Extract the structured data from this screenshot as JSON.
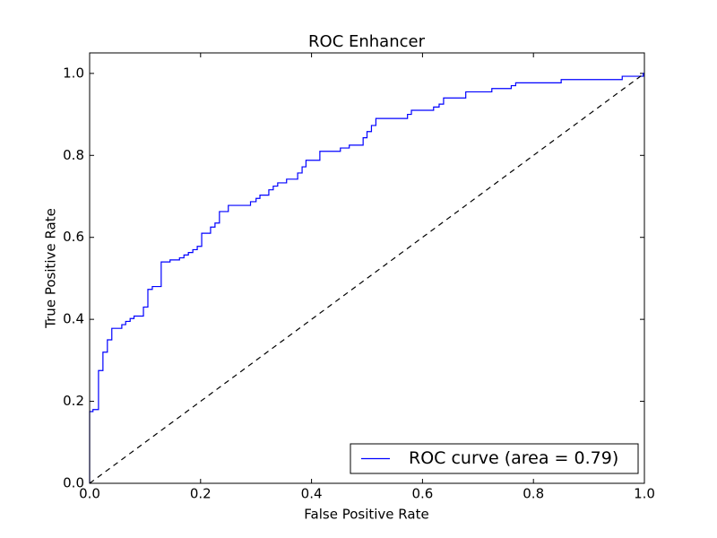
{
  "chart_data": {
    "type": "line",
    "title": "ROC Enhancer",
    "x_label": "False Positive Rate",
    "y_label": "True Positive Rate",
    "xlim": [
      0,
      1
    ],
    "ylim": [
      0,
      1.05
    ],
    "xticks": [
      {
        "value": 0,
        "label": "0.0"
      },
      0.2,
      0.4,
      0.6,
      0.8,
      {
        "value": 1,
        "label": "1.0"
      }
    ],
    "yticks": [
      {
        "value": 0,
        "label": "0.0"
      },
      0.2,
      0.4,
      0.6,
      0.8,
      {
        "value": 1,
        "label": "1.0"
      }
    ],
    "legend_loc": "lower right",
    "series": [
      {
        "name": "ROC curve (area = 0.79)",
        "color": "#0000ff",
        "x": [
          0,
          0,
          0.006,
          0.006,
          0.016,
          0.016,
          0.024,
          0.024,
          0.032,
          0.032,
          0.04,
          0.04,
          0.058,
          0.058,
          0.065,
          0.065,
          0.073,
          0.073,
          0.08,
          0.08,
          0.097,
          0.097,
          0.105,
          0.105,
          0.113,
          0.113,
          0.129,
          0.129,
          0.145,
          0.145,
          0.162,
          0.162,
          0.17,
          0.17,
          0.178,
          0.178,
          0.186,
          0.186,
          0.194,
          0.194,
          0.202,
          0.202,
          0.218,
          0.218,
          0.226,
          0.226,
          0.234,
          0.234,
          0.25,
          0.25,
          0.29,
          0.29,
          0.3,
          0.3,
          0.307,
          0.307,
          0.323,
          0.323,
          0.331,
          0.331,
          0.339,
          0.339,
          0.355,
          0.355,
          0.375,
          0.375,
          0.383,
          0.383,
          0.39,
          0.39,
          0.415,
          0.415,
          0.452,
          0.452,
          0.468,
          0.468,
          0.493,
          0.493,
          0.5,
          0.5,
          0.508,
          0.508,
          0.516,
          0.516,
          0.573,
          0.573,
          0.58,
          0.58,
          0.62,
          0.62,
          0.63,
          0.63,
          0.638,
          0.638,
          0.678,
          0.678,
          0.725,
          0.725,
          0.76,
          0.76,
          0.768,
          0.768,
          0.85,
          0.85,
          0.96,
          0.96,
          0.998,
          0.998,
          1
        ],
        "values": [
          0,
          0.175,
          0.175,
          0.18,
          0.18,
          0.275,
          0.275,
          0.32,
          0.32,
          0.35,
          0.35,
          0.378,
          0.378,
          0.387,
          0.387,
          0.395,
          0.395,
          0.402,
          0.402,
          0.408,
          0.408,
          0.43,
          0.43,
          0.473,
          0.473,
          0.48,
          0.48,
          0.54,
          0.54,
          0.545,
          0.545,
          0.55,
          0.55,
          0.557,
          0.557,
          0.563,
          0.563,
          0.57,
          0.57,
          0.578,
          0.578,
          0.61,
          0.61,
          0.625,
          0.625,
          0.635,
          0.635,
          0.663,
          0.663,
          0.678,
          0.678,
          0.687,
          0.687,
          0.695,
          0.695,
          0.703,
          0.703,
          0.716,
          0.716,
          0.725,
          0.725,
          0.733,
          0.733,
          0.742,
          0.742,
          0.757,
          0.757,
          0.772,
          0.772,
          0.788,
          0.788,
          0.81,
          0.81,
          0.818,
          0.818,
          0.825,
          0.825,
          0.843,
          0.843,
          0.858,
          0.858,
          0.873,
          0.873,
          0.89,
          0.89,
          0.9,
          0.9,
          0.91,
          0.91,
          0.918,
          0.918,
          0.925,
          0.925,
          0.94,
          0.94,
          0.955,
          0.955,
          0.963,
          0.963,
          0.97,
          0.97,
          0.977,
          0.977,
          0.985,
          0.985,
          0.993,
          0.993,
          1,
          1
        ]
      },
      {
        "color": "#000000",
        "dashed": true,
        "x": [
          0,
          1
        ],
        "values": [
          0,
          1
        ]
      }
    ]
  }
}
